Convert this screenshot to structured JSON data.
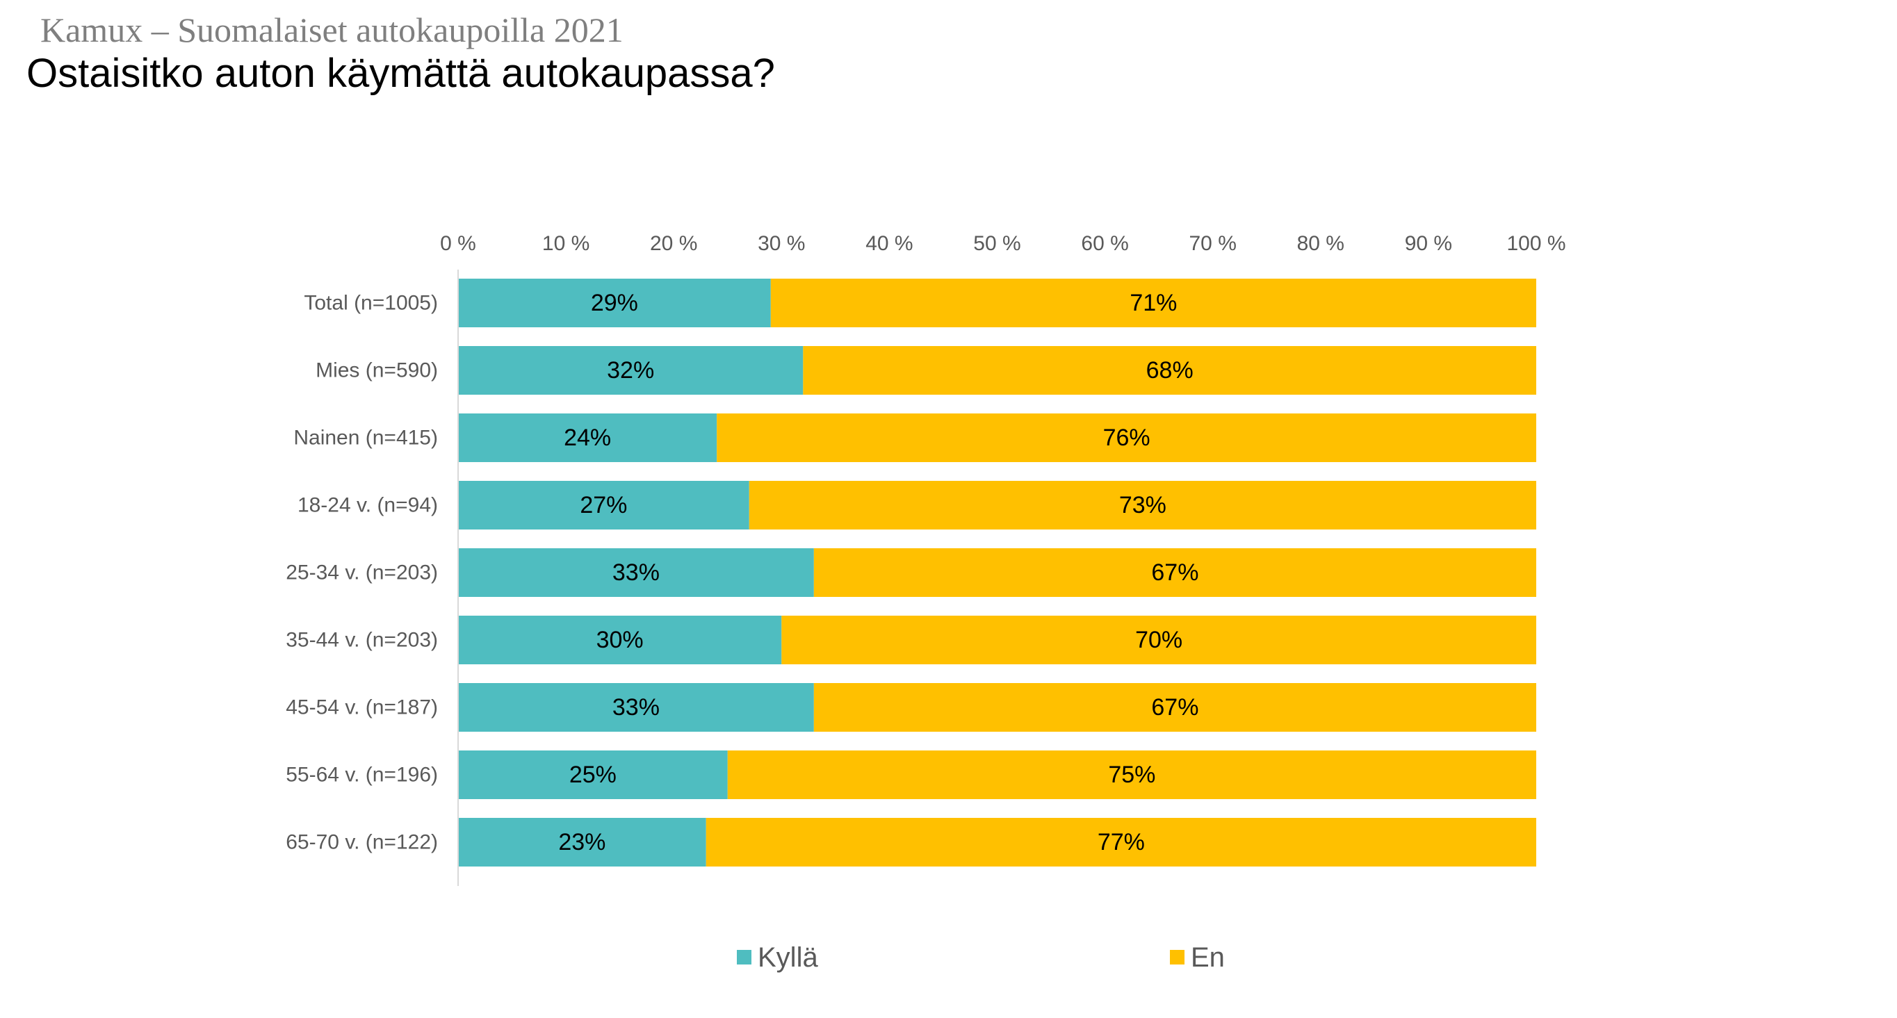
{
  "header": {
    "subtitle": "Kamux – Suomalaiset autokaupoilla 2021",
    "title": "Ostaisitko auton käymättä autokaupassa?"
  },
  "chart_data": {
    "type": "bar",
    "orientation": "horizontal",
    "stacked": true,
    "percent_stacked": true,
    "categories": [
      "Total (n=1005)",
      "Mies (n=590)",
      "Nainen (n=415)",
      "18-24 v. (n=94)",
      "25-34 v. (n=203)",
      "35-44 v. (n=203)",
      "45-54 v. (n=187)",
      "55-64 v. (n=196)",
      "65-70 v. (n=122)"
    ],
    "series": [
      {
        "name": "Kyllä",
        "color": "#4fbdc0",
        "values": [
          29,
          32,
          24,
          27,
          33,
          30,
          33,
          25,
          23
        ],
        "labels": [
          "29%",
          "32%",
          "24%",
          "27%",
          "33%",
          "30%",
          "33%",
          "25%",
          "23%"
        ]
      },
      {
        "name": "En",
        "color": "#ffc000",
        "values": [
          71,
          68,
          76,
          73,
          67,
          70,
          67,
          75,
          77
        ],
        "labels": [
          "71%",
          "68%",
          "76%",
          "73%",
          "67%",
          "70%",
          "67%",
          "75%",
          "77%"
        ]
      }
    ],
    "x_axis": {
      "position": "top",
      "range": [
        0,
        100
      ],
      "ticks": [
        0,
        10,
        20,
        30,
        40,
        50,
        60,
        70,
        80,
        90,
        100
      ],
      "tick_labels": [
        "0 %",
        "10 %",
        "20 %",
        "30 %",
        "40 %",
        "50 %",
        "60 %",
        "70 %",
        "80 %",
        "90 %",
        "100 %"
      ]
    },
    "grid": false,
    "legend": {
      "placement": "bottom"
    }
  }
}
